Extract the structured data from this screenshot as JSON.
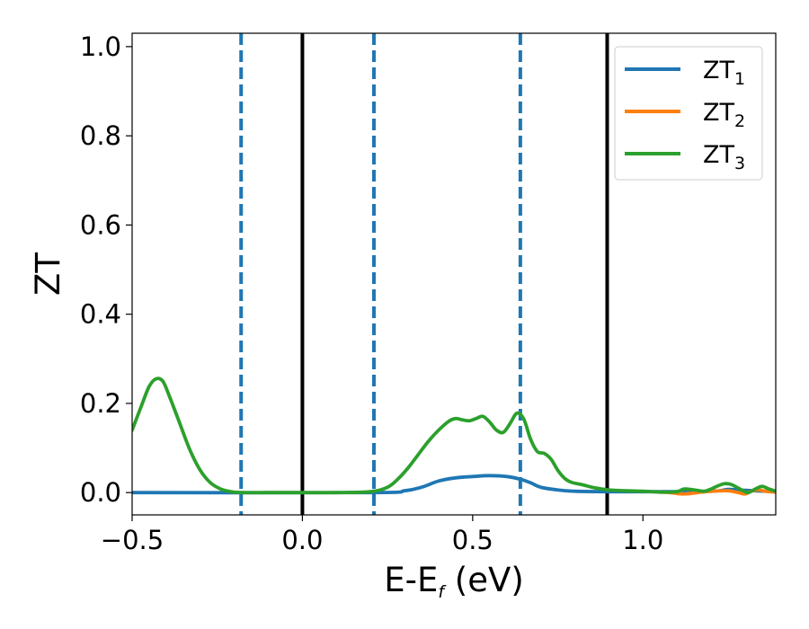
{
  "chart_data": {
    "type": "line",
    "xlabel": "E-E",
    "xlabel_sub": "f",
    "xlabel_unit": " (eV)",
    "ylabel": "ZT",
    "xlim": [
      -0.5,
      1.39
    ],
    "ylim": [
      -0.05,
      1.03
    ],
    "x_ticks": [
      -0.5,
      0.0,
      0.5,
      1.0
    ],
    "x_tick_labels": [
      "−0.5",
      "0.0",
      "0.5",
      "1.0"
    ],
    "y_ticks": [
      0.0,
      0.2,
      0.4,
      0.6,
      0.8,
      1.0
    ],
    "y_tick_labels": [
      "0.0",
      "0.2",
      "0.4",
      "0.6",
      "0.8",
      "1.0"
    ],
    "grid": false,
    "legend_position": "top-right",
    "vertical_lines": [
      {
        "x": -0.18,
        "style": "dashed",
        "color": "#1f77b4"
      },
      {
        "x": 0.0,
        "style": "solid",
        "color": "#000000"
      },
      {
        "x": 0.21,
        "style": "dashed",
        "color": "#1f77b4"
      },
      {
        "x": 0.64,
        "style": "dashed",
        "color": "#1f77b4"
      },
      {
        "x": 0.895,
        "style": "solid",
        "color": "#000000"
      }
    ],
    "series": [
      {
        "name": "ZT",
        "name_sub": "1",
        "color": "#1f77b4",
        "x": [
          -0.5,
          0.2,
          0.3,
          0.35,
          0.4,
          0.45,
          0.5,
          0.55,
          0.6,
          0.64,
          0.67,
          0.7,
          0.75,
          0.8,
          0.9,
          1.0,
          1.2,
          1.25,
          1.3,
          1.39
        ],
        "y": [
          0.0,
          0.0,
          0.004,
          0.012,
          0.026,
          0.033,
          0.036,
          0.038,
          0.036,
          0.03,
          0.022,
          0.012,
          0.006,
          0.003,
          0.002,
          0.002,
          0.003,
          0.007,
          0.005,
          0.002
        ]
      },
      {
        "name": "ZT",
        "name_sub": "2",
        "color": "#ff7f0e",
        "x": [
          1.05,
          1.08,
          1.1,
          1.12,
          1.14,
          1.16,
          1.2,
          1.25,
          1.28,
          1.3,
          1.32,
          1.34,
          1.36,
          1.39
        ],
        "y": [
          0.001,
          0.0,
          -0.002,
          -0.003,
          -0.002,
          0.0,
          0.003,
          0.004,
          0.0,
          -0.003,
          0.004,
          0.006,
          0.003,
          0.001
        ]
      },
      {
        "name": "ZT",
        "name_sub": "3",
        "color": "#2ca02c",
        "x": [
          -0.5,
          -0.47,
          -0.45,
          -0.43,
          -0.41,
          -0.39,
          -0.36,
          -0.33,
          -0.3,
          -0.27,
          -0.24,
          -0.21,
          -0.18,
          -0.1,
          0.0,
          0.1,
          0.2,
          0.25,
          0.28,
          0.31,
          0.34,
          0.37,
          0.4,
          0.43,
          0.45,
          0.47,
          0.49,
          0.51,
          0.53,
          0.55,
          0.57,
          0.59,
          0.61,
          0.63,
          0.65,
          0.67,
          0.69,
          0.71,
          0.73,
          0.75,
          0.77,
          0.79,
          0.82,
          0.85,
          0.88,
          0.9,
          0.95,
          1.0,
          1.05,
          1.1,
          1.12,
          1.15,
          1.18,
          1.2,
          1.22,
          1.24,
          1.26,
          1.28,
          1.3,
          1.31,
          1.33,
          1.35,
          1.37,
          1.39
        ],
        "y": [
          0.14,
          0.2,
          0.238,
          0.255,
          0.25,
          0.215,
          0.155,
          0.095,
          0.05,
          0.022,
          0.008,
          0.002,
          0.0,
          0.0,
          0.0,
          0.0,
          0.002,
          0.012,
          0.03,
          0.055,
          0.085,
          0.115,
          0.14,
          0.16,
          0.166,
          0.163,
          0.161,
          0.166,
          0.171,
          0.158,
          0.14,
          0.135,
          0.155,
          0.178,
          0.165,
          0.12,
          0.092,
          0.088,
          0.075,
          0.05,
          0.032,
          0.023,
          0.018,
          0.012,
          0.008,
          0.006,
          0.004,
          0.003,
          0.001,
          0.002,
          0.008,
          0.006,
          0.003,
          0.008,
          0.015,
          0.02,
          0.018,
          0.01,
          0.002,
          0.0,
          0.008,
          0.014,
          0.008,
          0.003
        ]
      }
    ]
  }
}
